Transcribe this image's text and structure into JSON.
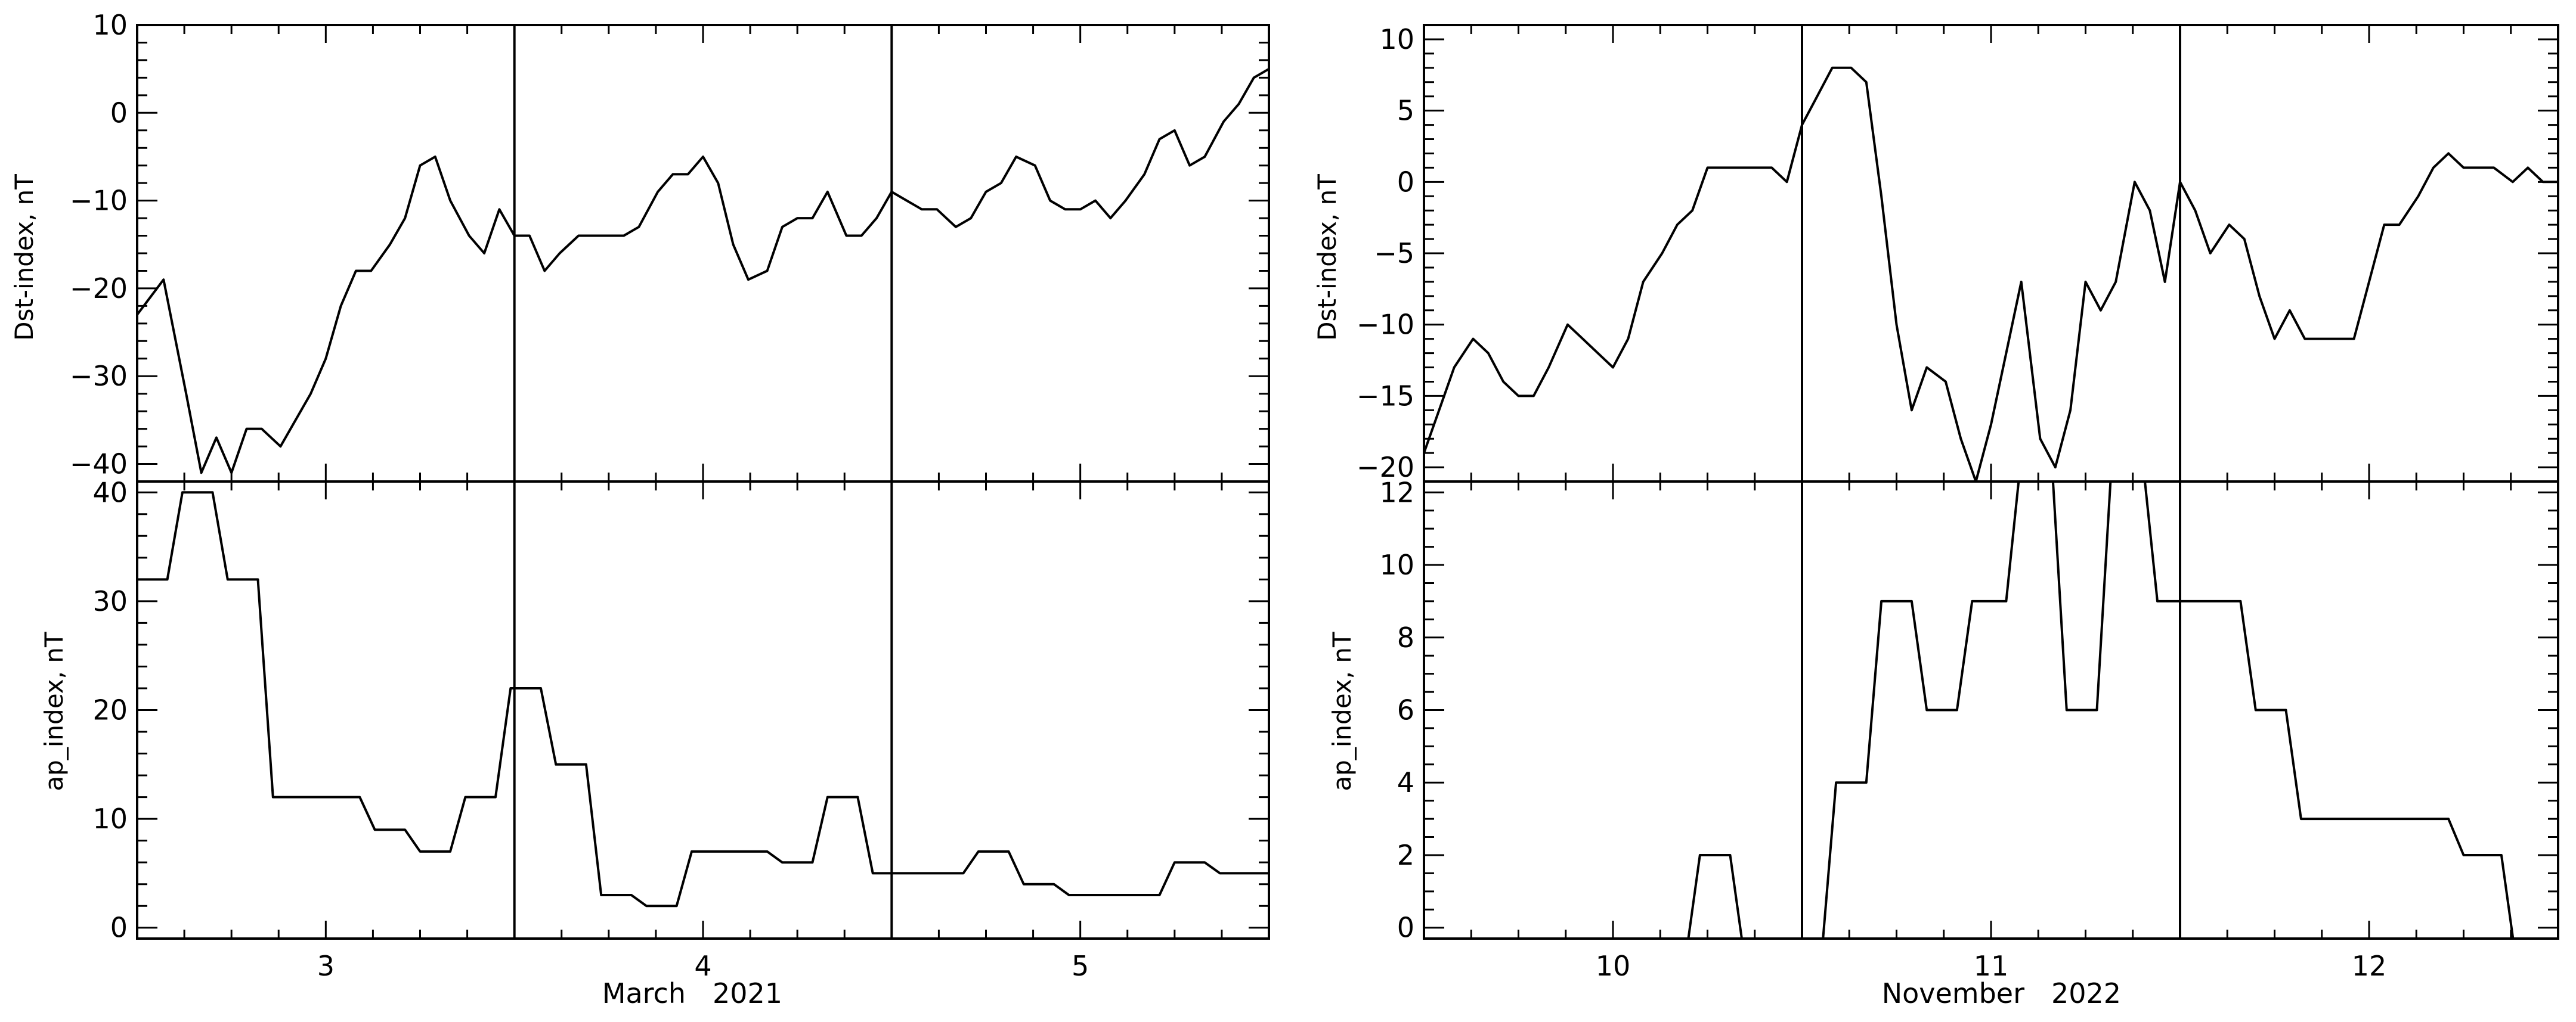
{
  "chart_data": [
    {
      "type": "line",
      "panel": "left-top",
      "ylabel": "Dst-index, nT",
      "ylim": [
        -42,
        10
      ],
      "y_ticks": [
        10,
        0,
        -10,
        -20,
        -30,
        -40
      ],
      "y_minor_step": 2,
      "xlim": [
        2.5,
        5.5
      ],
      "x": [
        2.5,
        2.57,
        2.63,
        2.67,
        2.71,
        2.75,
        2.79,
        2.83,
        2.88,
        2.92,
        2.96,
        3.0,
        3.04,
        3.08,
        3.12,
        3.17,
        3.21,
        3.25,
        3.29,
        3.33,
        3.38,
        3.42,
        3.46,
        3.5,
        3.54,
        3.58,
        3.62,
        3.67,
        3.71,
        3.75,
        3.79,
        3.83,
        3.88,
        3.92,
        3.96,
        4.0,
        4.04,
        4.08,
        4.12,
        4.17,
        4.21,
        4.25,
        4.29,
        4.33,
        4.38,
        4.42,
        4.46,
        4.5,
        4.54,
        4.58,
        4.62,
        4.67,
        4.71,
        4.75,
        4.79,
        4.83,
        4.88,
        4.92,
        4.96,
        5.0,
        5.04,
        5.08,
        5.12,
        5.17,
        5.21,
        5.25,
        5.29,
        5.33,
        5.38,
        5.42,
        5.46,
        5.5
      ],
      "y": [
        -23,
        -19,
        -32,
        -41,
        -37,
        -41,
        -36,
        -36,
        -38,
        -35,
        -32,
        -28,
        -22,
        -18,
        -18,
        -15,
        -12,
        -6,
        -5,
        -10,
        -14,
        -16,
        -11,
        -14,
        -14,
        -18,
        -16,
        -14,
        -14,
        -14,
        -14,
        -13,
        -9,
        -7,
        -7,
        -5,
        -8,
        -15,
        -19,
        -18,
        -13,
        -12,
        -12,
        -9,
        -14,
        -14,
        -12,
        -9,
        -10,
        -11,
        -11,
        -13,
        -12,
        -9,
        -8,
        -5,
        -6,
        -10,
        -11,
        -11,
        -10,
        -12,
        -10,
        -7,
        -3,
        -2,
        -6,
        -5,
        -1,
        1,
        4,
        5
      ],
      "vlines": [
        3.5,
        4.5
      ],
      "grid": false
    },
    {
      "type": "line",
      "panel": "left-bottom",
      "ylabel": "ap_index, nT",
      "ylim": [
        -1,
        41
      ],
      "y_ticks": [
        0,
        10,
        20,
        30,
        40
      ],
      "y_minor_step": 2,
      "xlim": [
        2.5,
        5.5
      ],
      "x_ticks": [
        3,
        4,
        5
      ],
      "x_minor_step": 0.125,
      "xlabel_month": "March",
      "xlabel_year": "2021",
      "x": [
        2.5,
        2.58,
        2.62,
        2.7,
        2.74,
        2.82,
        2.86,
        3.09,
        3.13,
        3.21,
        3.25,
        3.33,
        3.37,
        3.45,
        3.49,
        3.57,
        3.61,
        3.69,
        3.73,
        3.81,
        3.85,
        3.93,
        3.97,
        4.17,
        4.21,
        4.29,
        4.33,
        4.41,
        4.45,
        4.53,
        4.57,
        4.69,
        4.73,
        4.81,
        4.85,
        4.93,
        4.97,
        5.21,
        5.25,
        5.33,
        5.37,
        5.5
      ],
      "y": [
        32,
        32,
        40,
        40,
        32,
        32,
        12,
        12,
        9,
        9,
        7,
        7,
        12,
        12,
        22,
        22,
        15,
        15,
        3,
        3,
        2,
        2,
        7,
        7,
        6,
        6,
        12,
        12,
        5,
        5,
        5,
        5,
        7,
        7,
        4,
        4,
        3,
        3,
        6,
        6,
        5,
        5
      ],
      "vlines": [
        3.5,
        4.5
      ],
      "grid": false
    },
    {
      "type": "line",
      "panel": "right-top",
      "ylabel": "Dst-index, nT",
      "ylim": [
        -21,
        11
      ],
      "y_ticks": [
        10,
        5,
        0,
        -5,
        -10,
        -15,
        -20
      ],
      "y_minor_step": 1,
      "xlim": [
        9.5,
        12.5
      ],
      "x": [
        9.5,
        9.54,
        9.58,
        9.63,
        9.67,
        9.71,
        9.75,
        9.79,
        9.83,
        9.88,
        9.92,
        9.96,
        10.0,
        10.04,
        10.08,
        10.13,
        10.17,
        10.21,
        10.25,
        10.29,
        10.33,
        10.38,
        10.42,
        10.46,
        10.5,
        10.54,
        10.58,
        10.63,
        10.67,
        10.71,
        10.75,
        10.79,
        10.83,
        10.88,
        10.92,
        10.96,
        11.0,
        11.04,
        11.08,
        11.13,
        11.17,
        11.21,
        11.25,
        11.29,
        11.33,
        11.38,
        11.42,
        11.46,
        11.5,
        11.54,
        11.58,
        11.63,
        11.67,
        11.71,
        11.75,
        11.79,
        11.83,
        11.88,
        11.92,
        11.96,
        12.0,
        12.04,
        12.08,
        12.13,
        12.17,
        12.21,
        12.25,
        12.29,
        12.33,
        12.38,
        12.42,
        12.46,
        12.5
      ],
      "y": [
        -19,
        -16,
        -13,
        -11,
        -12,
        -14,
        -15,
        -15,
        -13,
        -10,
        -11,
        -12,
        -13,
        -11,
        -7,
        -5,
        -3,
        -2,
        1,
        1,
        1,
        1,
        1,
        0,
        4,
        6,
        8,
        8,
        7,
        -1,
        -10,
        -16,
        -13,
        -14,
        -18,
        -21,
        -17,
        -12,
        -7,
        -18,
        -20,
        -16,
        -7,
        -9,
        -7,
        0,
        -2,
        -7,
        0,
        -2,
        -5,
        -3,
        -4,
        -8,
        -11,
        -9,
        -11,
        -11,
        -11,
        -11,
        -7,
        -3,
        -3,
        -1,
        1,
        2,
        1,
        1,
        1,
        0,
        1,
        0,
        0
      ],
      "vlines": [
        10.5,
        11.5
      ],
      "grid": false
    },
    {
      "type": "line",
      "panel": "right-bottom",
      "ylabel": "ap_index, nT",
      "ylim": [
        -0.3,
        12.3
      ],
      "y_ticks": [
        0,
        2,
        4,
        6,
        8,
        10,
        12
      ],
      "y_minor_step": 0.5,
      "xlim": [
        9.5,
        12.5
      ],
      "x_ticks": [
        10,
        11,
        12
      ],
      "x_minor_step": 0.125,
      "xlabel_month": "November",
      "xlabel_year": "2022",
      "x": [
        9.5,
        10.19,
        10.23,
        10.31,
        10.35,
        10.55,
        10.59,
        10.67,
        10.71,
        10.79,
        10.83,
        10.91,
        10.95,
        11.04,
        11.08,
        11.16,
        11.2,
        11.28,
        11.32,
        11.4,
        11.44,
        11.53,
        11.57,
        11.66,
        11.7,
        11.78,
        11.82,
        11.99,
        12.03,
        12.11,
        12.15,
        12.21,
        12.25,
        12.35,
        12.39,
        12.43,
        12.47,
        12.5
      ],
      "y": [
        -1,
        -1,
        2,
        2,
        -1,
        -1,
        4,
        4,
        9,
        9,
        6,
        6,
        9,
        9,
        13,
        13,
        6,
        6,
        13,
        13,
        9,
        9,
        9,
        9,
        6,
        6,
        3,
        3,
        3,
        3,
        3,
        3,
        2,
        2,
        -1,
        -1,
        -1,
        -1
      ],
      "vlines": [
        10.5,
        11.5
      ],
      "grid": false
    }
  ]
}
